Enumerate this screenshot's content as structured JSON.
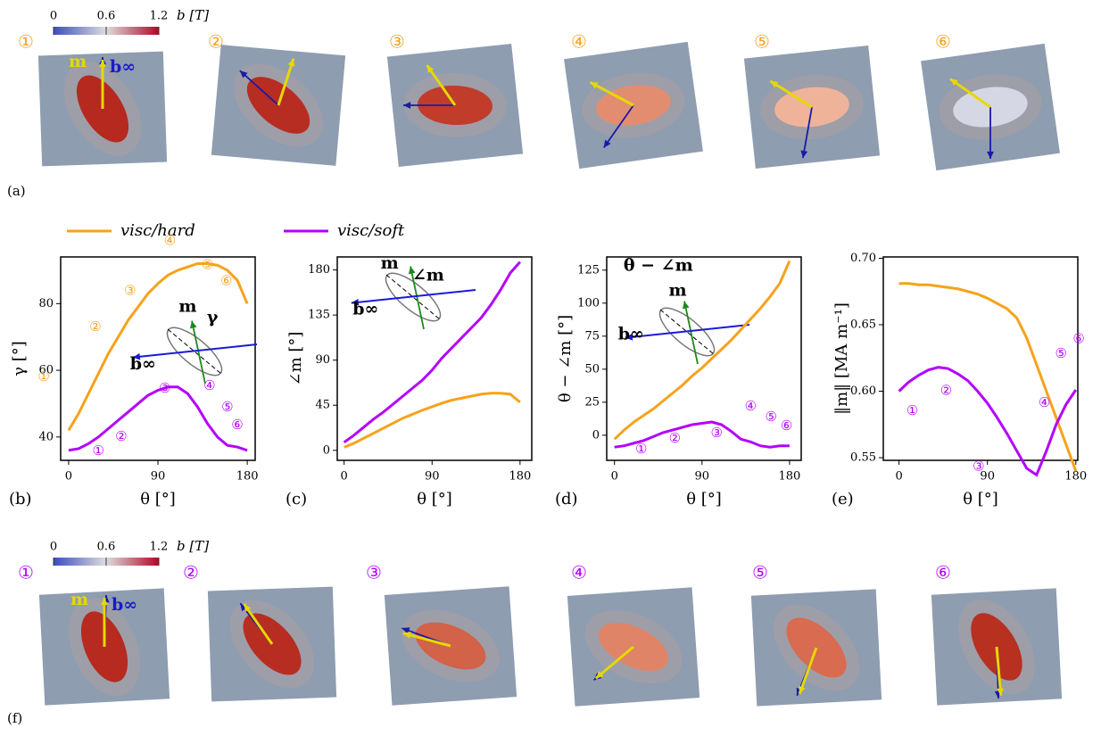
{
  "figure_a": {
    "label": "(a)",
    "colorbar": {
      "ticks": [
        0,
        0.6,
        1.2
      ],
      "label": "b [T]"
    },
    "steps": [
      "①",
      "②",
      "③",
      "④",
      "⑤",
      "⑥"
    ],
    "m_label": "m",
    "b_label": "b∞"
  },
  "chart_data": [
    {
      "type": "line",
      "label": "(b)",
      "xlabel": "θ [°]",
      "ylabel": "γ [°]",
      "x": [
        0,
        10,
        20,
        30,
        40,
        50,
        60,
        70,
        80,
        90,
        100,
        110,
        120,
        130,
        140,
        150,
        160,
        170,
        180
      ],
      "xlim": [
        -8,
        188
      ],
      "ylim": [
        33,
        94
      ],
      "xticks": [
        0,
        90,
        180
      ],
      "yticks": [
        40,
        60,
        80
      ],
      "series": [
        {
          "name": "visc/hard",
          "color": "#f7a21b",
          "values": [
            42,
            47,
            53,
            59,
            65,
            70,
            75,
            79,
            83,
            86,
            88.5,
            90,
            91,
            92,
            92,
            91.5,
            90,
            87,
            80
          ]
        },
        {
          "name": "visc/soft",
          "color": "#b400ff",
          "values": [
            36,
            36.5,
            38,
            40,
            42.5,
            45,
            47.5,
            50,
            52.5,
            54,
            55,
            55,
            53,
            49,
            44,
            40,
            37.5,
            37,
            36
          ]
        }
      ],
      "annotations": [
        {
          "text": "①",
          "x": -25,
          "y": 57.9,
          "color": "#f7a21b"
        },
        {
          "text": "②",
          "x": 27,
          "y": 72.8,
          "color": "#f7a21b"
        },
        {
          "text": "③",
          "x": 62,
          "y": 83.7,
          "color": "#f7a21b"
        },
        {
          "text": "④",
          "x": 102,
          "y": 98.7,
          "color": "#f7a21b"
        },
        {
          "text": "⑤",
          "x": 140,
          "y": 91.5,
          "color": "#f7a21b"
        },
        {
          "text": "⑥",
          "x": 159,
          "y": 86.7,
          "color": "#f7a21b"
        },
        {
          "text": "①",
          "x": 30,
          "y": 35.7,
          "color": "#b400ff"
        },
        {
          "text": "②",
          "x": 53,
          "y": 40,
          "color": "#b400ff"
        },
        {
          "text": "③",
          "x": 97,
          "y": 54.4,
          "color": "#b400ff"
        },
        {
          "text": "④",
          "x": 142,
          "y": 55.2,
          "color": "#b400ff"
        },
        {
          "text": "⑤",
          "x": 160,
          "y": 48.8,
          "color": "#b400ff"
        },
        {
          "text": "⑥",
          "x": 170,
          "y": 43.5,
          "color": "#b400ff"
        },
        {
          "text": "m",
          "x": 120,
          "y": 78.9,
          "color": "#000000"
        },
        {
          "text": "γ",
          "x": 145,
          "y": 75.7,
          "color": "#000000"
        },
        {
          "text": "b∞",
          "x": 75,
          "y": 61.6,
          "color": "#000000"
        }
      ]
    },
    {
      "type": "line",
      "label": "(c)",
      "xlabel": "θ [°]",
      "ylabel": "∠m [°]",
      "x": [
        0,
        10,
        20,
        30,
        40,
        50,
        60,
        70,
        80,
        90,
        100,
        110,
        120,
        130,
        140,
        150,
        160,
        170,
        180
      ],
      "xlim": [
        -7,
        192
      ],
      "ylim": [
        -10,
        193
      ],
      "xticks": [
        0,
        90,
        180
      ],
      "yticks": [
        0,
        45,
        90,
        135,
        180
      ],
      "series": [
        {
          "name": "visc/hard",
          "color": "#f7a21b",
          "values": [
            3,
            7,
            12,
            17,
            22,
            27,
            32,
            36,
            40,
            43.5,
            47,
            50,
            52,
            54,
            56,
            57,
            57,
            56,
            48
          ]
        },
        {
          "name": "visc/soft",
          "color": "#b400ff",
          "values": [
            8,
            15,
            23,
            31,
            38,
            46,
            54,
            62,
            70,
            80,
            92,
            102,
            112,
            122,
            132,
            145,
            160,
            177,
            188
          ]
        }
      ],
      "annotations": [
        {
          "text": "m",
          "x": 46.6,
          "y": 186,
          "color": "#000000"
        },
        {
          "text": "∠m",
          "x": 86,
          "y": 174,
          "color": "#000000"
        },
        {
          "text": "b∞",
          "x": 22,
          "y": 140,
          "color": "#000000"
        }
      ]
    },
    {
      "type": "line",
      "label": "(d)",
      "xlabel": "θ [°]",
      "ylabel": "θ − ∠m [°]",
      "x": [
        0,
        10,
        20,
        30,
        40,
        50,
        60,
        70,
        80,
        90,
        100,
        110,
        120,
        130,
        140,
        150,
        160,
        170,
        180
      ],
      "xlim": [
        -8,
        192
      ],
      "ylim": [
        -19,
        135
      ],
      "xticks": [
        0,
        90,
        180
      ],
      "yticks": [
        0,
        25,
        50,
        75,
        100,
        125
      ],
      "series": [
        {
          "name": "visc/hard",
          "color": "#f7a21b",
          "values": [
            -3,
            4,
            10,
            15,
            20,
            26,
            32,
            38,
            45,
            51,
            58,
            65,
            72,
            80,
            88,
            96,
            105,
            115,
            132
          ]
        },
        {
          "name": "visc/soft",
          "color": "#b400ff",
          "values": [
            -9,
            -8,
            -6,
            -4,
            -1,
            2,
            4,
            6,
            8,
            9,
            10,
            8,
            3,
            -3,
            -5,
            -8,
            -9,
            -8,
            -8
          ]
        }
      ],
      "annotations": [
        {
          "text": "①",
          "x": 27.5,
          "y": -10.8,
          "color": "#b400ff"
        },
        {
          "text": "②",
          "x": 62,
          "y": -2.7,
          "color": "#b400ff"
        },
        {
          "text": "③",
          "x": 105,
          "y": 1.4,
          "color": "#b400ff"
        },
        {
          "text": "④",
          "x": 140,
          "y": 21.6,
          "color": "#b400ff"
        },
        {
          "text": "⑤",
          "x": 161,
          "y": 13.5,
          "color": "#b400ff"
        },
        {
          "text": "⑥",
          "x": 177,
          "y": 6.8,
          "color": "#b400ff"
        },
        {
          "text": "θ − ∠m",
          "x": 45,
          "y": 128,
          "color": "#000000"
        },
        {
          "text": "m",
          "x": 65,
          "y": 109,
          "color": "#000000"
        },
        {
          "text": "b∞",
          "x": 17,
          "y": 76,
          "color": "#000000"
        }
      ]
    },
    {
      "type": "line",
      "label": "(e)",
      "xlabel": "θ [°]",
      "ylabel": "‖m‖ [MA m⁻¹]",
      "x": [
        0,
        10,
        20,
        30,
        40,
        50,
        60,
        70,
        80,
        90,
        100,
        110,
        120,
        130,
        140,
        150,
        160,
        170,
        180
      ],
      "xlim": [
        -16,
        182
      ],
      "ylim": [
        0.548,
        0.701
      ],
      "xticks": [
        0,
        90,
        180
      ],
      "yticks": [
        0.55,
        {
          "value": 0.6,
          "label": "0.60"
        },
        0.65,
        {
          "value": 0.7,
          "label": "0.70"
        }
      ],
      "series": [
        {
          "name": "visc/hard",
          "color": "#f7a21b",
          "values": [
            0.681,
            0.681,
            0.68,
            0.68,
            0.679,
            0.678,
            0.677,
            0.675,
            0.673,
            0.67,
            0.666,
            0.662,
            0.655,
            0.64,
            0.62,
            0.6,
            0.58,
            0.56,
            0.54
          ]
        },
        {
          "name": "visc/soft",
          "color": "#b400ff",
          "values": [
            0.6,
            0.607,
            0.612,
            0.616,
            0.618,
            0.617,
            0.613,
            0.608,
            0.6,
            0.591,
            0.58,
            0.568,
            0.555,
            0.542,
            0.537,
            0.555,
            0.575,
            0.59,
            0.601
          ]
        }
      ],
      "annotations": [
        {
          "text": "①",
          "x": 13.6,
          "y": 0.585,
          "color": "#b400ff"
        },
        {
          "text": "②",
          "x": 48,
          "y": 0.6,
          "color": "#b400ff"
        },
        {
          "text": "③",
          "x": 81,
          "y": 0.543,
          "color": "#b400ff"
        },
        {
          "text": "④",
          "x": 148,
          "y": 0.591,
          "color": "#b400ff"
        },
        {
          "text": "⑤",
          "x": 165,
          "y": 0.628,
          "color": "#b400ff"
        },
        {
          "text": "⑥",
          "x": 183,
          "y": 0.639,
          "color": "#b400ff"
        }
      ]
    }
  ],
  "figure_f": {
    "label": "(f)",
    "colorbar": {
      "ticks": [
        0,
        0.6,
        1.2
      ],
      "label": "b [T]"
    },
    "steps": [
      "①",
      "②",
      "③",
      "④",
      "⑤",
      "⑥"
    ],
    "m_label": "m",
    "b_label": "b∞"
  }
}
